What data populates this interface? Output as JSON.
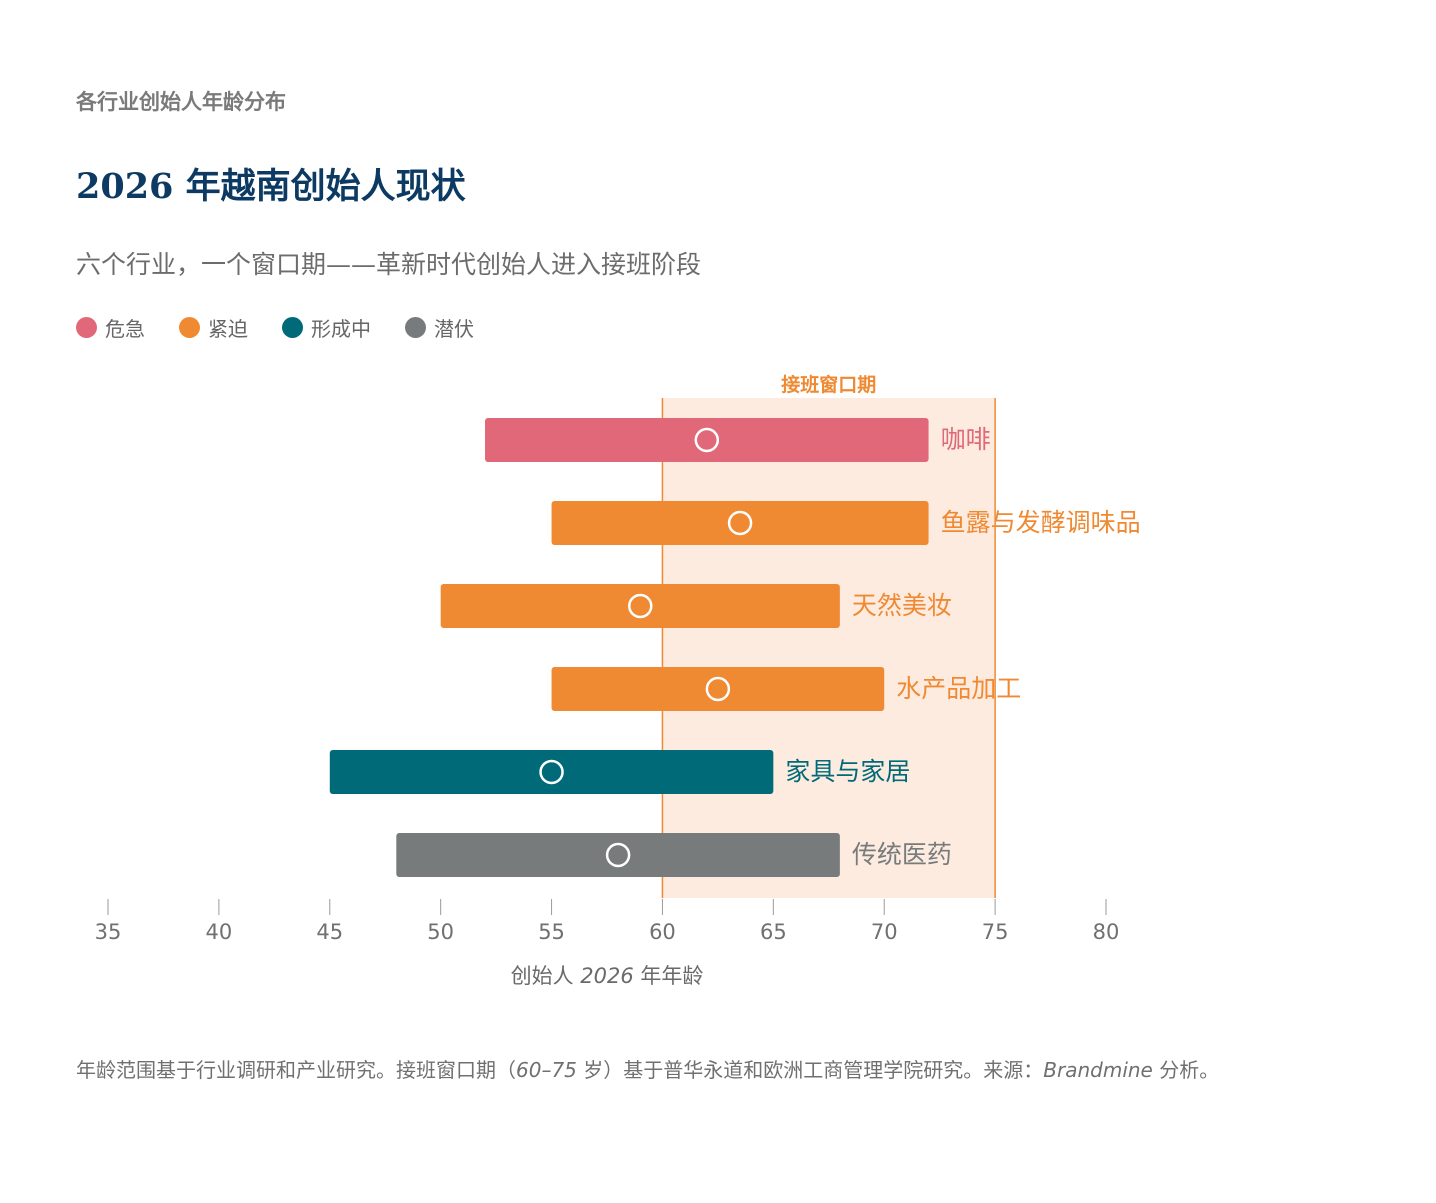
{
  "header": {
    "eyebrow": "各行业创始人年龄分布",
    "title": "2026 年越南创始人现状",
    "subtitle": "六个行业，一个窗口期——革新时代创始人进入接班阶段"
  },
  "legend": [
    {
      "label": "危急",
      "color": "#e06878"
    },
    {
      "label": "紧迫",
      "color": "#ef8a33"
    },
    {
      "label": "形成中",
      "color": "#006a78"
    },
    {
      "label": "潜伏",
      "color": "#777b7c"
    }
  ],
  "chart_data": {
    "type": "range-bar",
    "xlim": [
      35,
      80
    ],
    "xticks": [
      35,
      40,
      45,
      50,
      55,
      60,
      65,
      70,
      75,
      80
    ],
    "window": {
      "label": "接班窗口期",
      "from": 60,
      "to": 75,
      "color": "#ef8a33",
      "fill": "#fdebdf"
    },
    "series": [
      {
        "name": "咖啡",
        "min": 52,
        "max": 72,
        "median": 62,
        "color": "#e06878"
      },
      {
        "name": "鱼露与发酵调味品",
        "min": 55,
        "max": 72,
        "median": 63.5,
        "color": "#ef8a33"
      },
      {
        "name": "天然美妆",
        "min": 50,
        "max": 68,
        "median": 59,
        "color": "#ef8a33"
      },
      {
        "name": "水产品加工",
        "min": 55,
        "max": 70,
        "median": 62.5,
        "color": "#ef8a33"
      },
      {
        "name": "家具与家居",
        "min": 45,
        "max": 65,
        "median": 55,
        "color": "#006a78"
      },
      {
        "name": "传统医药",
        "min": 48,
        "max": 68,
        "median": 58,
        "color": "#777b7c"
      }
    ]
  },
  "axis": {
    "xlabel_prefix": "创始人 ",
    "xlabel_year": "2026",
    "xlabel_suffix": " 年年龄"
  },
  "footnote": {
    "part1": "年龄范围基于行业调研和产业研究。接班窗口期（",
    "range": "60–75",
    "part2": " 岁）基于普华永道和欧洲工商管理学院研究。来源：",
    "source": "Brandmine",
    "part3": " 分析。"
  }
}
